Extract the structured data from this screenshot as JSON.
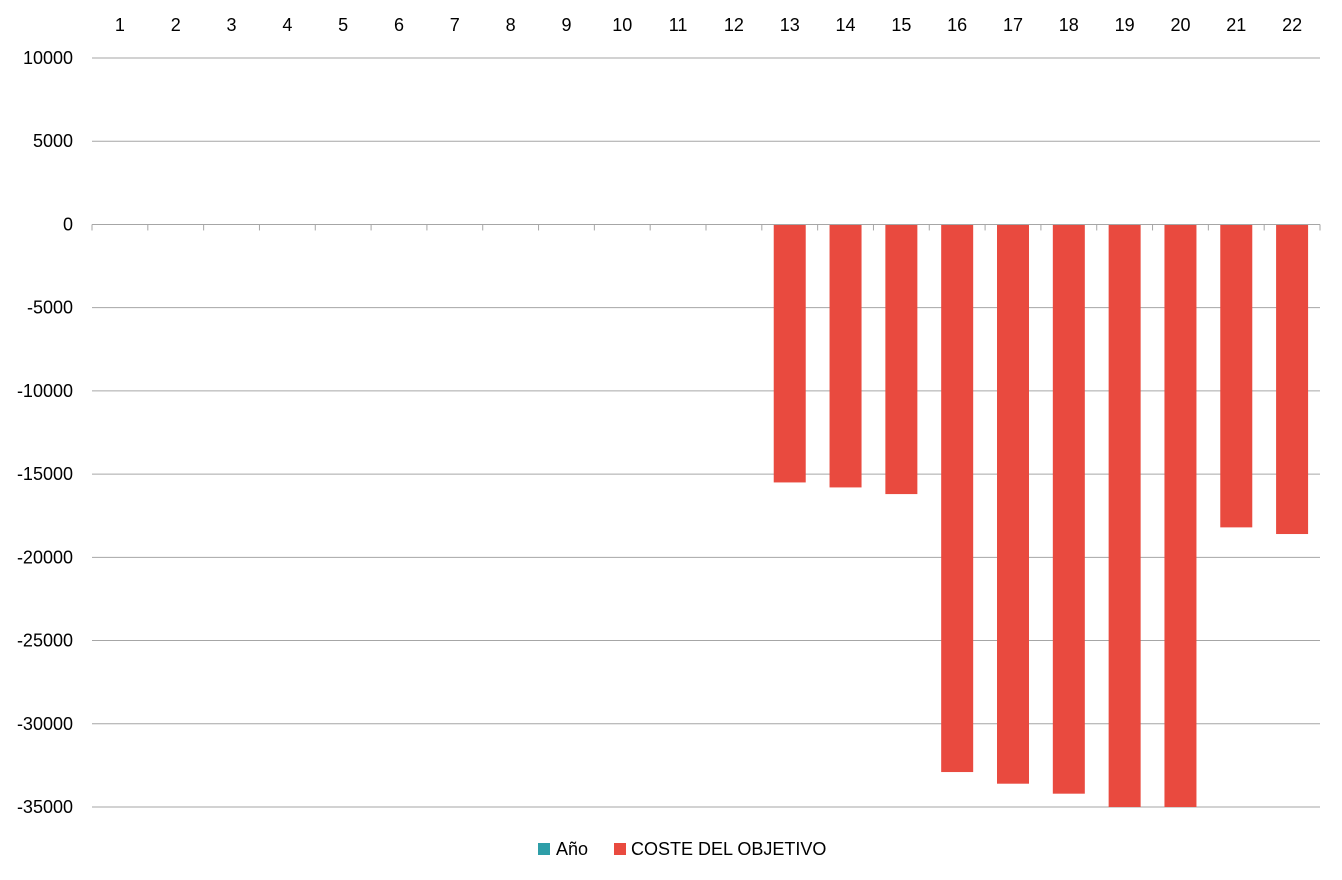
{
  "chart_data": {
    "type": "bar",
    "title": "",
    "xlabel": "",
    "ylabel": "",
    "categories": [
      "1",
      "2",
      "3",
      "4",
      "5",
      "6",
      "7",
      "8",
      "9",
      "10",
      "11",
      "12",
      "13",
      "14",
      "15",
      "16",
      "17",
      "18",
      "19",
      "20",
      "21",
      "22"
    ],
    "series": [
      {
        "name": "Año",
        "color": "#2e9ea8",
        "values": [
          0,
          0,
          0,
          0,
          0,
          0,
          0,
          0,
          0,
          0,
          0,
          0,
          0,
          0,
          0,
          0,
          0,
          0,
          0,
          0,
          0,
          0
        ]
      },
      {
        "name": "COSTE DEL OBJETIVO",
        "color": "#e94a3f",
        "values": [
          0,
          0,
          0,
          0,
          0,
          0,
          0,
          0,
          0,
          0,
          0,
          0,
          -15500,
          -15800,
          -16200,
          -32900,
          -33600,
          -34200,
          -35000,
          -35000,
          -18200,
          -18600
        ]
      }
    ],
    "ylim": [
      -35000,
      10000
    ],
    "yticks": [
      10000,
      5000,
      0,
      -5000,
      -10000,
      -15000,
      -20000,
      -25000,
      -30000,
      -35000
    ],
    "x_axis_labels_position": "top",
    "grid": true,
    "legend_position": "bottom-center"
  }
}
